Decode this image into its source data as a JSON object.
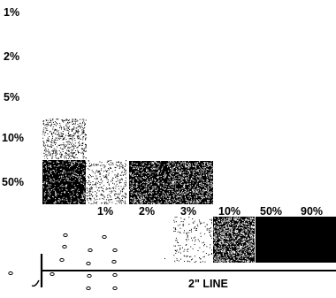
{
  "row_labels": [
    "1%",
    "2%",
    "5%",
    "10%",
    "50%"
  ],
  "column_labels": [
    "1%",
    "2%",
    "3%",
    "10%",
    "50%",
    "90%"
  ],
  "line_label": "2\" LINE",
  "colors": {
    "ink": "#000000",
    "paper": "#ffffff"
  },
  "swatches": [
    {
      "name": "row-10-light",
      "coverage": 0.25
    },
    {
      "name": "row-50-dark",
      "coverage": 0.82
    },
    {
      "name": "row-50-light",
      "coverage": 0.18
    },
    {
      "name": "col-2-3-dark-a",
      "coverage": 0.72
    },
    {
      "name": "col-2-3-dark-b",
      "coverage": 0.65
    },
    {
      "name": "col-10-sparse",
      "coverage": 0.08
    },
    {
      "name": "col-10-mid",
      "coverage": 0.55
    },
    {
      "name": "col-50-solid",
      "coverage": 1.0
    },
    {
      "name": "col-90-solid",
      "coverage": 1.0
    }
  ]
}
